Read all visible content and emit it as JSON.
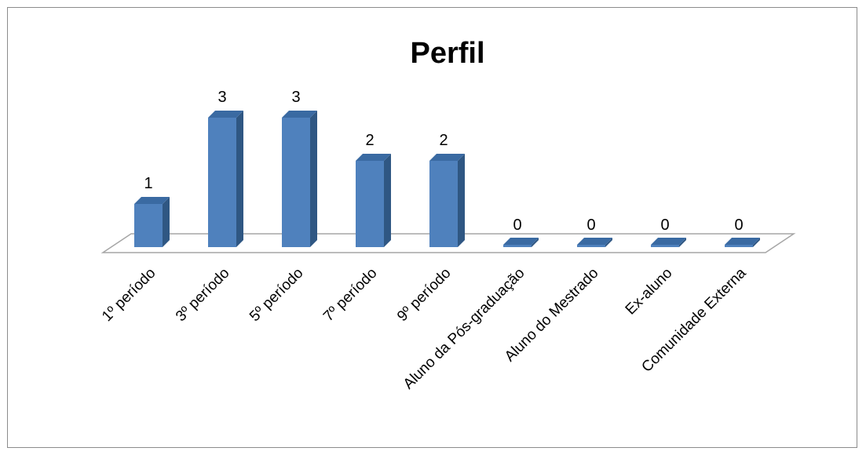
{
  "chart_data": {
    "type": "bar",
    "title": "Perfil",
    "categories": [
      "1º período",
      "3º período",
      "5º período",
      "7º período",
      "9º período",
      "Aluno da Pós-graduação",
      "Aluno do Mestrado",
      "Ex-aluno",
      "Comunidade Externa"
    ],
    "series": [
      {
        "values": [
          1,
          3,
          3,
          2,
          2,
          0,
          0,
          0,
          0
        ]
      }
    ],
    "show_data_labels": true,
    "ylim": [
      0,
      3
    ],
    "grid": false,
    "legend": "none",
    "style": "3d-column",
    "colors": {
      "bar_front": "#4f81bd",
      "bar_side": "#2f5783",
      "bar_top": "#3a6aa2",
      "floor_stroke": "#a6a6a6",
      "frame": "#8c8c8c"
    }
  }
}
